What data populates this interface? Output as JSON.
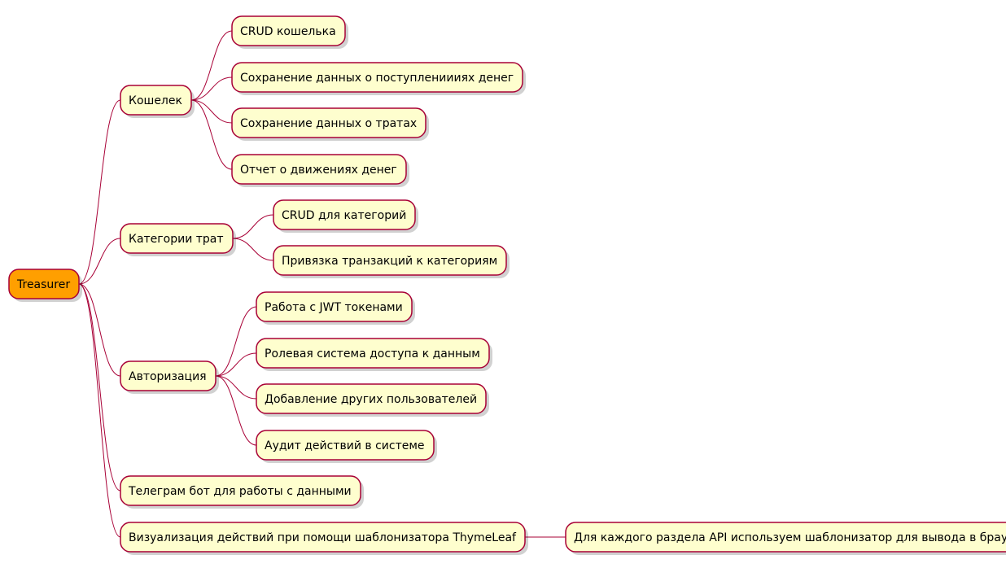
{
  "root": {
    "label": "Treasurer",
    "children": [
      {
        "label": "Кошелек",
        "children": [
          {
            "label": "CRUD кошелька"
          },
          {
            "label": "Сохранение данных о поступлениииях денег"
          },
          {
            "label": "Сохранение данных о тратах"
          },
          {
            "label": "Отчет о движениях денег"
          }
        ]
      },
      {
        "label": "Категории трат",
        "children": [
          {
            "label": "CRUD для категорий"
          },
          {
            "label": "Привязка транзакций к категориям"
          }
        ]
      },
      {
        "label": "Авторизация",
        "children": [
          {
            "label": "Работа с JWT токенами"
          },
          {
            "label": "Ролевая система доступа к данным"
          },
          {
            "label": "Добавление других пользователей"
          },
          {
            "label": "Аудит действий в системе"
          }
        ]
      },
      {
        "label": "Телеграм бот для работы с данными"
      },
      {
        "label": "Визуализация действий при помощи шаблонизатора ThymeLeaf",
        "children": [
          {
            "label": "Для каждого раздела API используем шаблонизатор для вывода в браузере"
          }
        ]
      }
    ]
  },
  "colors": {
    "root_fill": "#FF9F00",
    "node_fill": "#FEFECE",
    "border": "#A80036"
  }
}
